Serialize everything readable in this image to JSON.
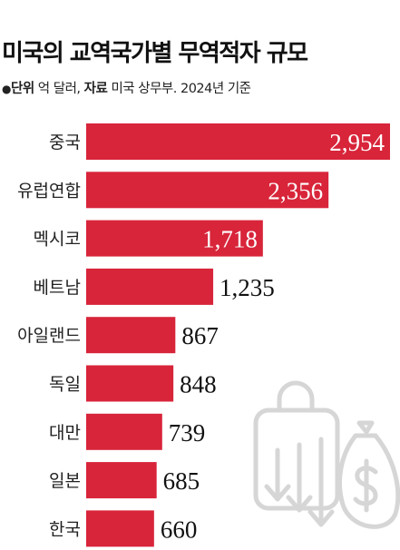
{
  "header": {
    "title": "미국의 교역국가별 무역적자 규모",
    "unit_label": "단위",
    "unit_value": "억 달러,",
    "source_label": "자료",
    "source_value": "미국 상무부. 2024년 기준"
  },
  "colors": {
    "bar": "#d8253a",
    "icon": "#d6d6d6"
  },
  "decor": {
    "icon": "money-bag-loss-icon"
  },
  "chart_data": {
    "type": "bar",
    "orientation": "horizontal",
    "categories": [
      "중국",
      "유럽연합",
      "멕시코",
      "베트남",
      "아일랜드",
      "독일",
      "대만",
      "일본",
      "한국"
    ],
    "values": [
      2954,
      2356,
      1718,
      1235,
      867,
      848,
      739,
      685,
      660
    ],
    "value_labels": [
      "2,954",
      "2,356",
      "1,718",
      "1,235",
      "867",
      "848",
      "739",
      "685",
      "660"
    ],
    "xlim": [
      0,
      2954
    ]
  }
}
